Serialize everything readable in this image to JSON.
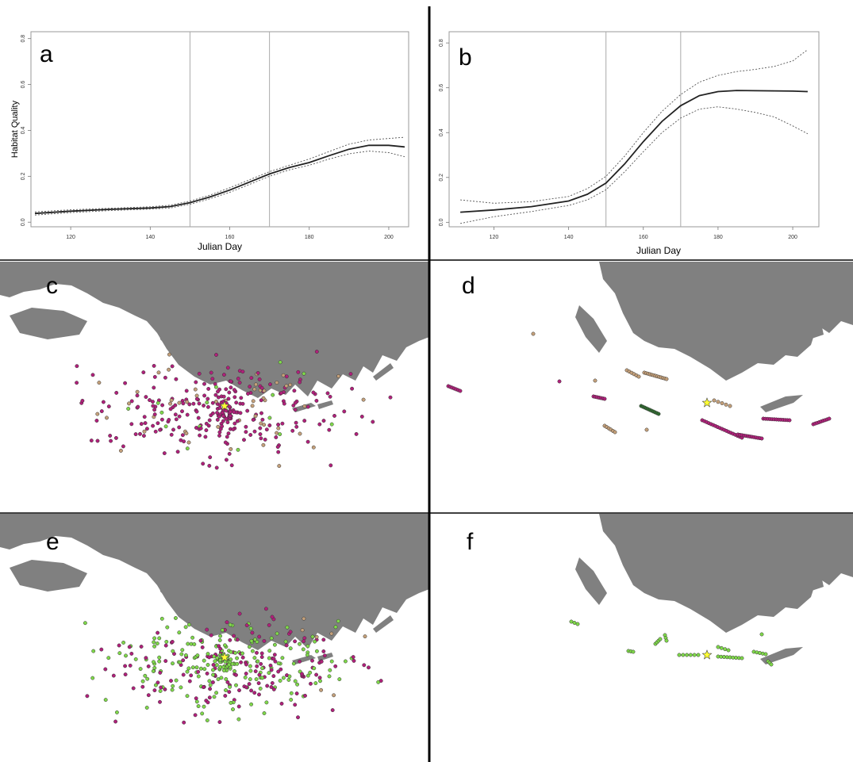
{
  "panels": {
    "a": {
      "letter": "a"
    },
    "b": {
      "letter": "b"
    },
    "c": {
      "letter": "c"
    },
    "d": {
      "letter": "d"
    },
    "e": {
      "letter": "e"
    },
    "f": {
      "letter": "f"
    }
  },
  "colors": {
    "land": "#808080",
    "magenta_point": "#b0207a",
    "tan_point": "#c4a07a",
    "green_point": "#7fd84a",
    "star": "#ffff33",
    "curve": "#222222",
    "ci": "#555555",
    "frame": "#999999",
    "divider": "#000000"
  },
  "chart_data": [
    {
      "id": "a",
      "type": "line",
      "title": "",
      "xlabel": "Julian Day",
      "ylabel": "Habitat Quality",
      "xlim": [
        110,
        205
      ],
      "ylim": [
        -0.02,
        0.83
      ],
      "xticks": [
        120,
        140,
        160,
        180,
        200
      ],
      "yticks": [
        0.0,
        0.2,
        0.4,
        0.6,
        0.8
      ],
      "vlines": [
        150,
        170
      ],
      "x": [
        111,
        120,
        130,
        140,
        145,
        150,
        155,
        160,
        165,
        170,
        175,
        180,
        185,
        190,
        195,
        200,
        204
      ],
      "series": [
        {
          "role": "fit",
          "values": [
            0.038,
            0.048,
            0.056,
            0.062,
            0.068,
            0.085,
            0.11,
            0.14,
            0.175,
            0.21,
            0.238,
            0.26,
            0.29,
            0.318,
            0.335,
            0.335,
            0.328
          ]
        },
        {
          "role": "upper",
          "values": [
            0.045,
            0.054,
            0.061,
            0.067,
            0.074,
            0.092,
            0.118,
            0.15,
            0.185,
            0.22,
            0.248,
            0.275,
            0.308,
            0.34,
            0.358,
            0.365,
            0.37
          ]
        },
        {
          "role": "lower",
          "values": [
            0.031,
            0.042,
            0.051,
            0.057,
            0.062,
            0.078,
            0.102,
            0.13,
            0.165,
            0.2,
            0.228,
            0.248,
            0.275,
            0.298,
            0.31,
            0.303,
            0.285
          ]
        }
      ]
    },
    {
      "id": "b",
      "type": "line",
      "title": "",
      "xlabel": "Julian Day",
      "ylabel": "",
      "xlim": [
        108,
        207
      ],
      "ylim": [
        -0.02,
        0.85
      ],
      "xticks": [
        120,
        140,
        160,
        180,
        200
      ],
      "yticks": [
        0.0,
        0.2,
        0.4,
        0.6,
        0.8
      ],
      "vlines": [
        150,
        170
      ],
      "x": [
        111,
        120,
        130,
        140,
        145,
        150,
        155,
        160,
        165,
        170,
        175,
        180,
        185,
        190,
        195,
        200,
        204
      ],
      "series": [
        {
          "role": "fit",
          "values": [
            0.045,
            0.055,
            0.07,
            0.095,
            0.125,
            0.175,
            0.26,
            0.36,
            0.45,
            0.52,
            0.565,
            0.583,
            0.588,
            0.587,
            0.586,
            0.585,
            0.583
          ]
        },
        {
          "role": "upper",
          "values": [
            0.1,
            0.085,
            0.092,
            0.115,
            0.15,
            0.205,
            0.295,
            0.4,
            0.495,
            0.57,
            0.625,
            0.655,
            0.672,
            0.682,
            0.695,
            0.72,
            0.77
          ]
        },
        {
          "role": "lower",
          "values": [
            -0.005,
            0.025,
            0.048,
            0.075,
            0.1,
            0.145,
            0.225,
            0.315,
            0.4,
            0.465,
            0.505,
            0.515,
            0.505,
            0.49,
            0.47,
            0.43,
            0.395
          ]
        }
      ]
    }
  ]
}
